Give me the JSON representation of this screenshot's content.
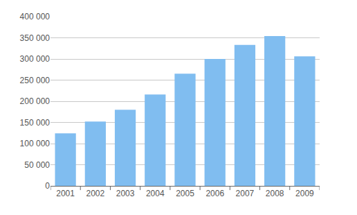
{
  "chart_data": {
    "type": "bar",
    "categories": [
      "2001",
      "2002",
      "2003",
      "2004",
      "2005",
      "2006",
      "2007",
      "2008",
      "2009"
    ],
    "values": [
      124000,
      152000,
      180000,
      216000,
      265000,
      300000,
      333000,
      354000,
      306000
    ],
    "color": "#80bdf0",
    "ylim": [
      0,
      400000
    ],
    "yticks": [
      0,
      {
        "value": 50000,
        "label": "50 000"
      },
      {
        "value": 100000,
        "label": "100 000"
      },
      {
        "value": 150000,
        "label": "150 000"
      },
      {
        "value": 200000,
        "label": "200 000"
      },
      {
        "value": 250000,
        "label": "250 000"
      },
      {
        "value": 300000,
        "label": "300 000"
      },
      {
        "value": 350000,
        "label": "350 000"
      },
      {
        "value": 400000,
        "label": "400 000"
      }
    ],
    "grid": true
  }
}
